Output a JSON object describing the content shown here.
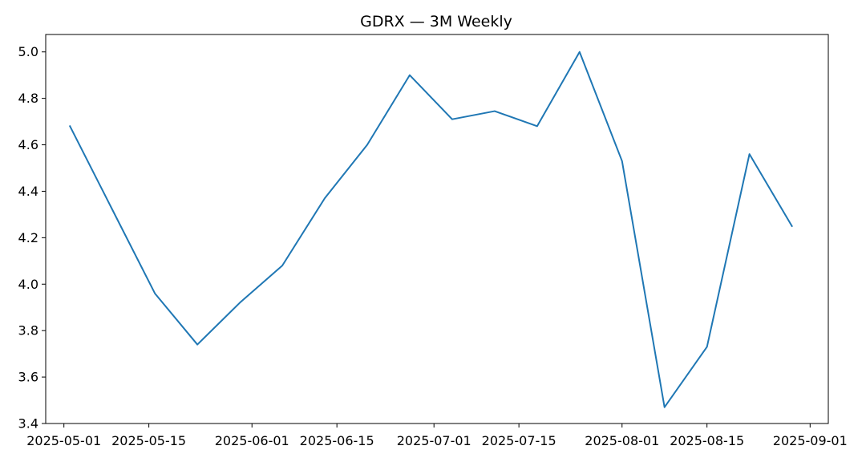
{
  "chart_data": {
    "type": "line",
    "title": "GDRX — 3M Weekly",
    "xlabel": "",
    "ylabel": "",
    "x": [
      "2025-05-02",
      "2025-05-09",
      "2025-05-16",
      "2025-05-23",
      "2025-05-30",
      "2025-06-06",
      "2025-06-13",
      "2025-06-20",
      "2025-06-27",
      "2025-07-04",
      "2025-07-11",
      "2025-07-18",
      "2025-07-25",
      "2025-08-01",
      "2025-08-08",
      "2025-08-15",
      "2025-08-22",
      "2025-08-29"
    ],
    "series": [
      {
        "values": [
          4.68,
          4.32,
          3.96,
          3.74,
          3.92,
          4.08,
          4.37,
          4.6,
          4.9,
          4.71,
          4.745,
          4.68,
          5.0,
          4.53,
          3.47,
          3.73,
          4.56,
          4.25
        ],
        "color": "#1f77b4"
      }
    ],
    "xlim": [
      "2025-04-28",
      "2025-09-04"
    ],
    "ylim": [
      3.4,
      5.075
    ],
    "x_ticks": [
      "2025-05-01",
      "2025-05-15",
      "2025-06-01",
      "2025-06-15",
      "2025-07-01",
      "2025-07-15",
      "2025-08-01",
      "2025-08-15",
      "2025-09-01"
    ],
    "y_ticks": [
      3.4,
      3.6,
      3.8,
      4.0,
      4.2,
      4.4,
      4.6,
      4.8,
      5.0
    ],
    "y_tick_labels": [
      "3.4",
      "3.6",
      "3.8",
      "4.0",
      "4.2",
      "4.4",
      "4.6",
      "4.8",
      "5.0"
    ],
    "grid": false,
    "legend": "none"
  }
}
